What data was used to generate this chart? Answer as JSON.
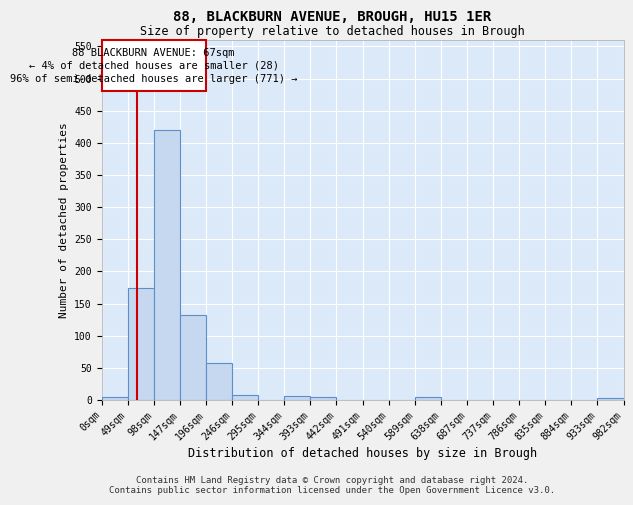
{
  "title1": "88, BLACKBURN AVENUE, BROUGH, HU15 1ER",
  "title2": "Size of property relative to detached houses in Brough",
  "xlabel": "Distribution of detached houses by size in Brough",
  "ylabel": "Number of detached properties",
  "bin_edges": [
    0,
    49,
    98,
    147,
    196,
    245,
    294,
    343,
    392,
    441,
    490,
    539,
    588,
    637,
    686,
    735,
    784,
    833,
    882,
    931,
    980
  ],
  "bin_labels": [
    "0sqm",
    "49sqm",
    "98sqm",
    "147sqm",
    "196sqm",
    "246sqm",
    "295sqm",
    "344sqm",
    "393sqm",
    "442sqm",
    "491sqm",
    "540sqm",
    "589sqm",
    "638sqm",
    "687sqm",
    "737sqm",
    "786sqm",
    "835sqm",
    "884sqm",
    "933sqm",
    "982sqm"
  ],
  "bar_heights": [
    5,
    175,
    420,
    132,
    58,
    8,
    0,
    6,
    5,
    0,
    0,
    0,
    5,
    0,
    0,
    0,
    0,
    0,
    0,
    3
  ],
  "bar_color": "#c5d8f0",
  "bar_edge_color": "#5b8fc9",
  "ylim": [
    0,
    560
  ],
  "yticks": [
    0,
    50,
    100,
    150,
    200,
    250,
    300,
    350,
    400,
    450,
    500,
    550
  ],
  "property_size": 67,
  "property_line_color": "#cc0000",
  "annotation_line1": "88 BLACKBURN AVENUE: 67sqm",
  "annotation_line2": "← 4% of detached houses are smaller (28)",
  "annotation_line3": "96% of semi-detached houses are larger (771) →",
  "annotation_box_color": "#cc0000",
  "annotation_box_facecolor": "#ffffff",
  "footer_line1": "Contains HM Land Registry data © Crown copyright and database right 2024.",
  "footer_line2": "Contains public sector information licensed under the Open Government Licence v3.0.",
  "fig_facecolor": "#f0f0f0",
  "background_color": "#dce9f8",
  "grid_color": "#ffffff",
  "title1_fontsize": 10,
  "title2_fontsize": 8.5,
  "xlabel_fontsize": 8.5,
  "ylabel_fontsize": 8,
  "tick_fontsize": 7,
  "annot_fontsize": 7.5,
  "footer_fontsize": 6.5
}
